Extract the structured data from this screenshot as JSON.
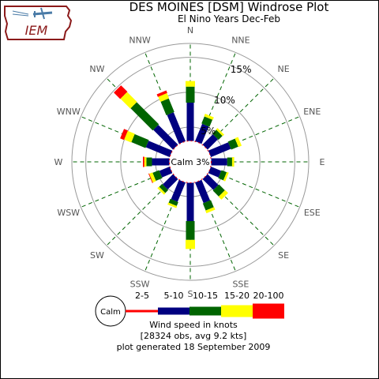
{
  "header": {
    "title": "DES MOINES [DSM] Windrose Plot",
    "subtitle": "El Nino Years Dec-Feb",
    "logo_text": "IEM"
  },
  "footer": {
    "line1": "Wind speed in knots",
    "line2": "[28324 obs, avg 9.2 kts]",
    "line3": "plot generated 18 September 2009"
  },
  "chart_data": {
    "type": "windrose",
    "calm_label": "Calm 3%",
    "directions": [
      "N",
      "NNE",
      "NE",
      "ENE",
      "E",
      "ESE",
      "SE",
      "SSE",
      "S",
      "SSW",
      "SW",
      "WSW",
      "W",
      "WNW",
      "NW",
      "NNW"
    ],
    "speed_bins": [
      {
        "label": "2-5",
        "color": "#ff0000"
      },
      {
        "label": "5-10",
        "color": "#000080"
      },
      {
        "label": "10-15",
        "color": "#006400"
      },
      {
        "label": "15-20",
        "color": "#ffff00"
      },
      {
        "label": "20-100",
        "color": "#ff0000"
      }
    ],
    "cumulative_percent": {
      "N": [
        3.0,
        8.5,
        10.8,
        11.6,
        11.6
      ],
      "NNE": [
        3.0,
        5.7,
        6.8,
        7.2,
        7.2
      ],
      "NE": [
        3.0,
        5.1,
        5.9,
        6.2,
        6.2
      ],
      "ENE": [
        3.0,
        6.1,
        7.2,
        7.7,
        7.7
      ],
      "E": [
        3.0,
        5.3,
        6.0,
        6.3,
        6.3
      ],
      "ESE": [
        3.0,
        4.6,
        5.4,
        5.7,
        5.7
      ],
      "SE": [
        3.0,
        5.2,
        6.4,
        7.0,
        7.0
      ],
      "SSE": [
        3.0,
        6.2,
        7.3,
        7.7,
        7.7
      ],
      "S": [
        3.0,
        8.5,
        11.2,
        12.5,
        12.5
      ],
      "SSW": [
        3.0,
        6.0,
        6.6,
        6.9,
        6.9
      ],
      "SW": [
        3.0,
        5.1,
        5.7,
        6.0,
        6.0
      ],
      "WSW": [
        3.0,
        4.6,
        5.6,
        6.1,
        6.2
      ],
      "W": [
        3.0,
        5.5,
        6.3,
        6.6,
        6.8
      ],
      "WNW": [
        3.0,
        6.7,
        8.9,
        10.0,
        10.6
      ],
      "NW": [
        3.0,
        7.0,
        11.5,
        13.5,
        14.8
      ],
      "NNW": [
        3.0,
        7.5,
        9.6,
        10.4,
        10.8
      ]
    },
    "rings": [
      {
        "value": 5,
        "label": "5%"
      },
      {
        "value": 10,
        "label": "10%"
      },
      {
        "value": 15,
        "label": "15%"
      }
    ],
    "rmax": 17
  }
}
